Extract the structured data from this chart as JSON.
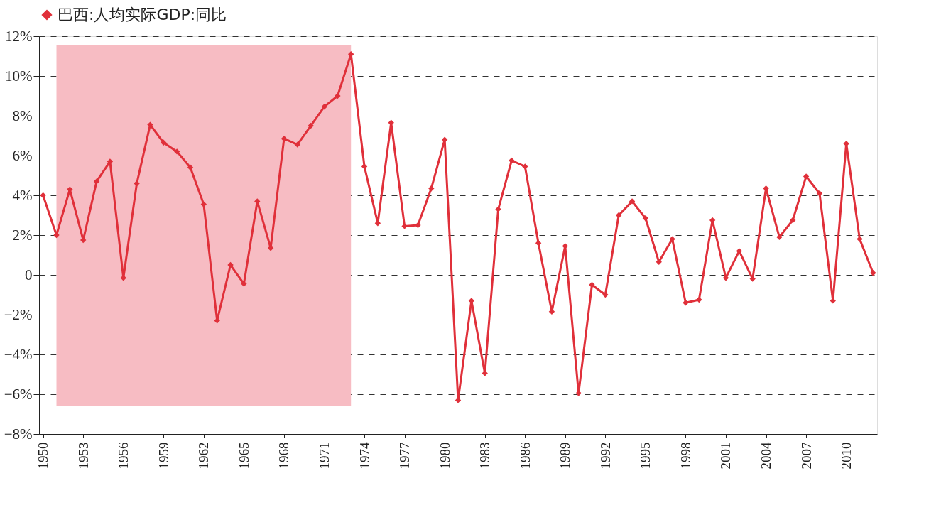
{
  "chart_data": {
    "type": "line",
    "categories": [
      "1950",
      null,
      null,
      "1953",
      null,
      null,
      "1956",
      null,
      null,
      "1959",
      null,
      null,
      "1962",
      null,
      null,
      "1965",
      null,
      null,
      "1968",
      null,
      null,
      "1971",
      null,
      null,
      "1974",
      null,
      null,
      "1977",
      null,
      null,
      "1980",
      null,
      null,
      "1983",
      null,
      null,
      "1986",
      null,
      null,
      "1989",
      null,
      null,
      "1992",
      null,
      null,
      "1995",
      null,
      null,
      "1998",
      null,
      null,
      "2001",
      null,
      null,
      "2004",
      null,
      null,
      "2007",
      null,
      null,
      "2010",
      null,
      null
    ],
    "series": [
      {
        "name": "巴西:人均实际GDP:同比",
        "color": "#e0303a",
        "values": [
          4.0,
          2.0,
          4.3,
          1.75,
          4.7,
          5.7,
          -0.15,
          4.6,
          7.55,
          6.65,
          6.2,
          5.4,
          3.55,
          -2.3,
          0.5,
          -0.45,
          3.7,
          1.35,
          6.85,
          6.55,
          7.5,
          8.45,
          9.0,
          11.1,
          5.45,
          2.6,
          7.65,
          2.45,
          2.5,
          4.35,
          6.8,
          -6.3,
          -1.3,
          -4.95,
          3.3,
          5.75,
          5.45,
          1.6,
          -1.85,
          1.45,
          -5.95,
          -0.5,
          -1.0,
          3.0,
          3.7,
          2.85,
          0.65,
          1.8,
          -1.4,
          -1.25,
          2.75,
          -0.15,
          1.2,
          -0.2,
          4.35,
          1.9,
          2.75,
          4.95,
          4.1,
          -1.3,
          6.6,
          1.8,
          0.1
        ]
      }
    ],
    "ylim": [
      -8,
      12
    ],
    "yticks": [
      {
        "value": -8,
        "label": "−8%"
      },
      {
        "value": -6,
        "label": "−6%"
      },
      {
        "value": -4,
        "label": "−4%"
      },
      {
        "value": -2,
        "label": "−2%"
      },
      0,
      {
        "value": 2,
        "label": "2%"
      },
      {
        "value": 4,
        "label": "4%"
      },
      {
        "value": 6,
        "label": "6%"
      },
      {
        "value": 8,
        "label": "8%"
      },
      {
        "value": 10,
        "label": "10%"
      },
      {
        "value": 12,
        "label": "12%"
      }
    ],
    "grid": "y",
    "legend": "top",
    "marker": "diamond",
    "line_style": "solid"
  }
}
